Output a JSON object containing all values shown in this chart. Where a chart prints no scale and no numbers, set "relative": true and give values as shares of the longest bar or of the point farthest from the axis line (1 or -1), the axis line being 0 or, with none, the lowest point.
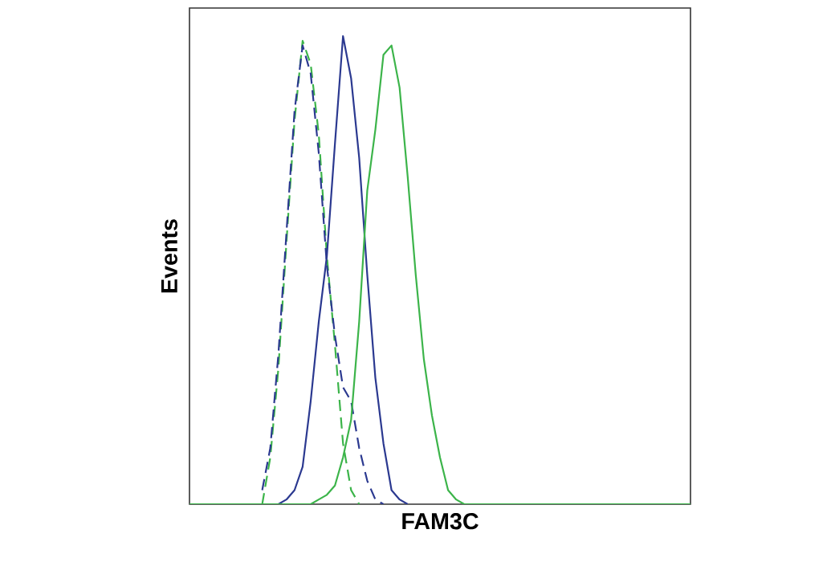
{
  "chart_data": {
    "type": "line",
    "xlabel": "FAM3C",
    "ylabel": "Events",
    "relative": true,
    "categories": [
      null,
      null,
      null,
      null,
      null,
      null,
      null,
      null,
      null,
      null,
      null,
      null,
      null,
      null,
      null,
      null,
      null,
      null,
      null,
      null,
      null,
      null,
      null,
      null,
      null,
      null,
      null,
      null,
      null,
      null,
      null,
      null,
      null,
      null,
      null,
      null,
      null,
      null,
      null,
      null,
      null,
      null,
      null,
      null,
      null,
      null,
      null,
      null,
      null,
      null,
      null,
      null,
      null,
      null,
      null,
      null,
      null,
      null,
      null,
      null,
      null,
      null,
      null
    ],
    "series": [
      {
        "color": "#3cb44a",
        "line_style": "dashed",
        "values": [
          null,
          null,
          null,
          null,
          null,
          null,
          null,
          null,
          null,
          0,
          0.1,
          0.29,
          0.56,
          0.82,
          0.99,
          0.94,
          0.79,
          0.53,
          0.34,
          0.13,
          0.03,
          0,
          null,
          null,
          null,
          null,
          null,
          null,
          null,
          null,
          null,
          null,
          null,
          null,
          null,
          null,
          null,
          null,
          null,
          null,
          null,
          null,
          null,
          null,
          null,
          null,
          null,
          null,
          null,
          null,
          null,
          null,
          null,
          null,
          null,
          null,
          null,
          null,
          null,
          null,
          null,
          null,
          null
        ]
      },
      {
        "color": "#2b3990",
        "line_style": "dashed",
        "values": [
          null,
          null,
          null,
          null,
          null,
          null,
          null,
          null,
          null,
          0.03,
          0.12,
          0.32,
          0.58,
          0.84,
          0.98,
          0.92,
          0.75,
          0.51,
          0.36,
          0.25,
          0.22,
          0.12,
          0.05,
          0.01,
          0,
          null,
          null,
          null,
          null,
          null,
          null,
          null,
          null,
          null,
          null,
          null,
          null,
          null,
          null,
          null,
          null,
          null,
          null,
          null,
          null,
          null,
          null,
          null,
          null,
          null,
          null,
          null,
          null,
          null,
          null,
          null,
          null,
          null,
          null,
          null,
          null,
          null,
          null
        ]
      },
      {
        "color": "#2b3990",
        "line_style": "solid",
        "values": [
          null,
          null,
          null,
          null,
          null,
          null,
          null,
          null,
          null,
          null,
          0,
          0,
          0.01,
          0.03,
          0.08,
          0.22,
          0.39,
          0.53,
          0.77,
          1,
          0.91,
          0.74,
          0.49,
          0.27,
          0.13,
          0.03,
          0.01,
          0,
          null,
          null,
          null,
          null,
          null,
          null,
          null,
          null,
          null,
          null,
          null,
          null,
          null,
          null,
          null,
          null,
          null,
          null,
          null,
          null,
          null,
          null,
          null,
          null,
          null,
          null,
          null,
          null,
          null,
          null,
          null,
          null,
          null,
          null,
          null
        ]
      },
      {
        "color": "#3cb44a",
        "line_style": "solid",
        "values": [
          0,
          0,
          0,
          0,
          0,
          0,
          0,
          0,
          0,
          0,
          0,
          0,
          0,
          0,
          0,
          0,
          0.01,
          0.02,
          0.04,
          0.1,
          0.18,
          0.39,
          0.67,
          0.8,
          0.96,
          0.98,
          0.89,
          0.7,
          0.49,
          0.31,
          0.19,
          0.1,
          0.03,
          0.01,
          0,
          0,
          0,
          0,
          0,
          0,
          0,
          0,
          0,
          0,
          0,
          0,
          0,
          0,
          0,
          0,
          0,
          0,
          0,
          0,
          0,
          0,
          0,
          0,
          0,
          0,
          0,
          0,
          0
        ]
      }
    ]
  }
}
